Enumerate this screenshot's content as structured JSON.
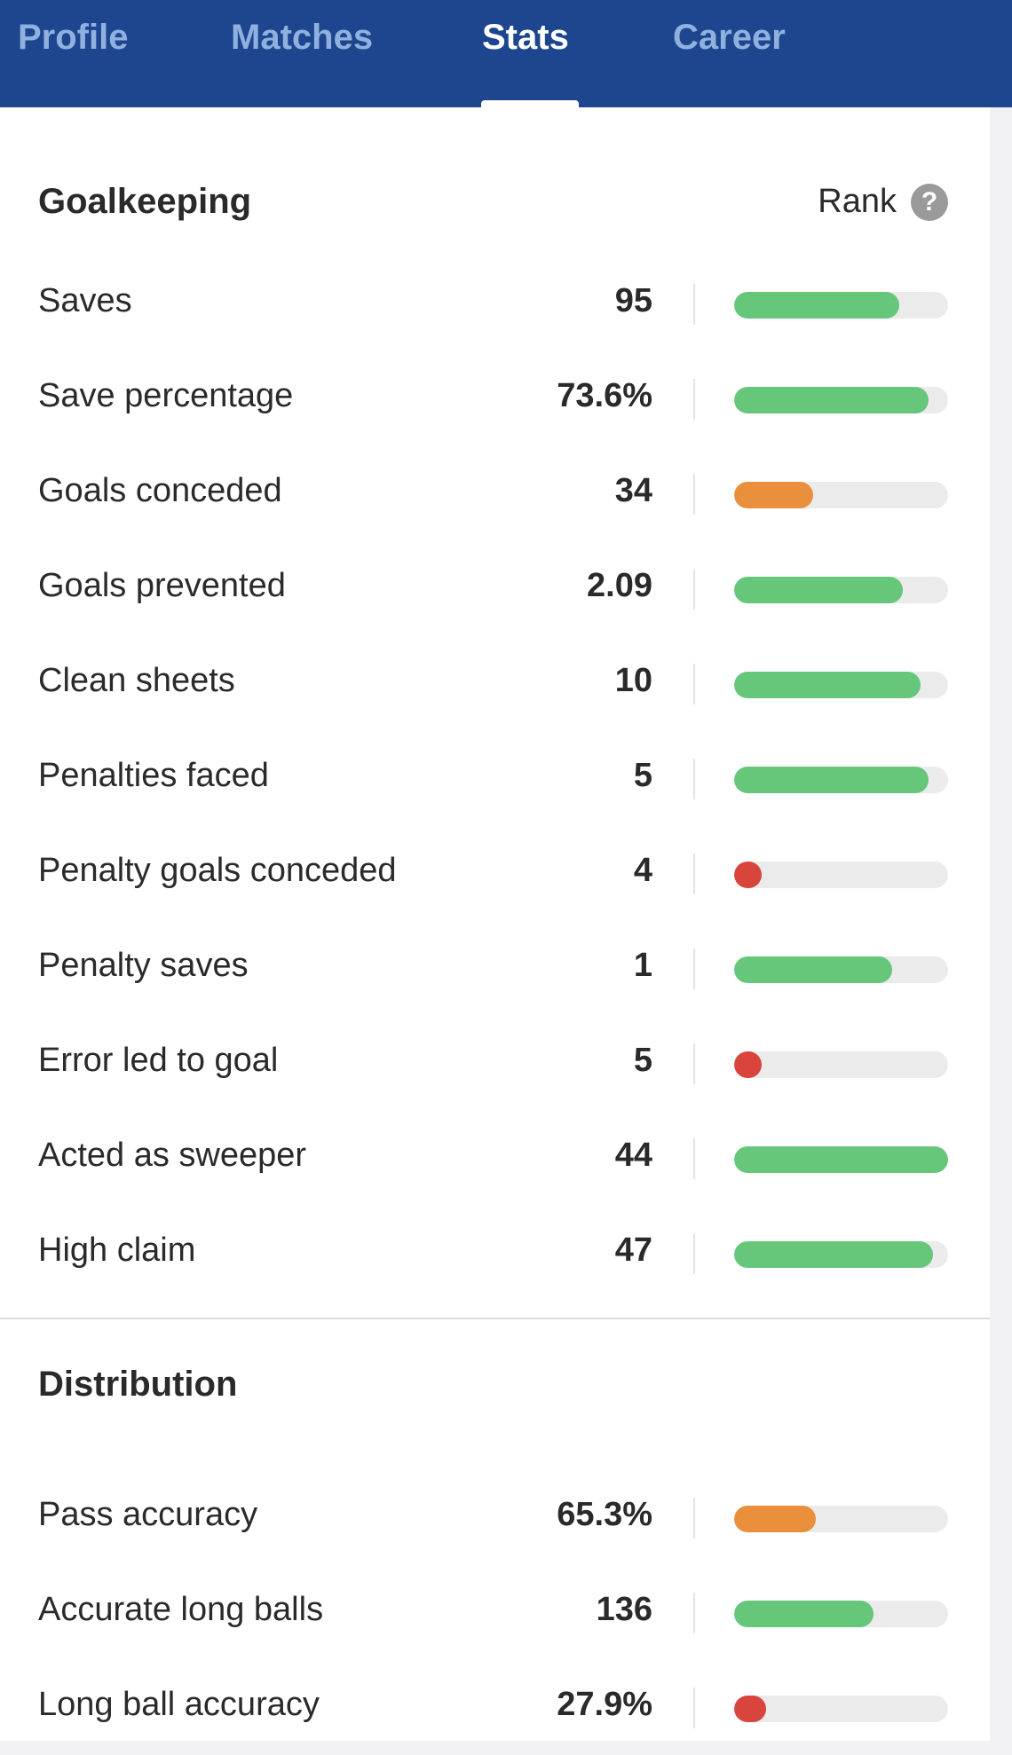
{
  "tabs": [
    {
      "label": "Profile",
      "active": false
    },
    {
      "label": "Matches",
      "active": false
    },
    {
      "label": "Stats",
      "active": true
    },
    {
      "label": "Career",
      "active": false
    }
  ],
  "colors": {
    "good": "#66c77b",
    "average": "#ea8f3c",
    "poor": "#d9443d"
  },
  "goalkeeping": {
    "title": "Goalkeeping",
    "rank_label": "Rank",
    "rank_help_icon": "question-mark-icon",
    "rows": [
      {
        "label": "Saves",
        "value": "95",
        "rank_fraction": 0.77,
        "rating": "good"
      },
      {
        "label": "Save percentage",
        "value": "73.6%",
        "rank_fraction": 0.91,
        "rating": "good"
      },
      {
        "label": "Goals conceded",
        "value": "34",
        "rank_fraction": 0.37,
        "rating": "average"
      },
      {
        "label": "Goals prevented",
        "value": "2.09",
        "rank_fraction": 0.79,
        "rating": "good"
      },
      {
        "label": "Clean sheets",
        "value": "10",
        "rank_fraction": 0.87,
        "rating": "good"
      },
      {
        "label": "Penalties faced",
        "value": "5",
        "rank_fraction": 0.91,
        "rating": "good"
      },
      {
        "label": "Penalty goals conceded",
        "value": "4",
        "rank_fraction": 0.13,
        "rating": "poor"
      },
      {
        "label": "Penalty saves",
        "value": "1",
        "rank_fraction": 0.74,
        "rating": "good"
      },
      {
        "label": "Error led to goal",
        "value": "5",
        "rank_fraction": 0.13,
        "rating": "poor"
      },
      {
        "label": "Acted as sweeper",
        "value": "44",
        "rank_fraction": 1.0,
        "rating": "good"
      },
      {
        "label": "High claim",
        "value": "47",
        "rank_fraction": 0.93,
        "rating": "good"
      }
    ]
  },
  "distribution": {
    "title": "Distribution",
    "rows": [
      {
        "label": "Pass accuracy",
        "value": "65.3%",
        "rank_fraction": 0.38,
        "rating": "average"
      },
      {
        "label": "Accurate long balls",
        "value": "136",
        "rank_fraction": 0.65,
        "rating": "good"
      },
      {
        "label": "Long ball accuracy",
        "value": "27.9%",
        "rank_fraction": 0.15,
        "rating": "poor"
      }
    ]
  }
}
